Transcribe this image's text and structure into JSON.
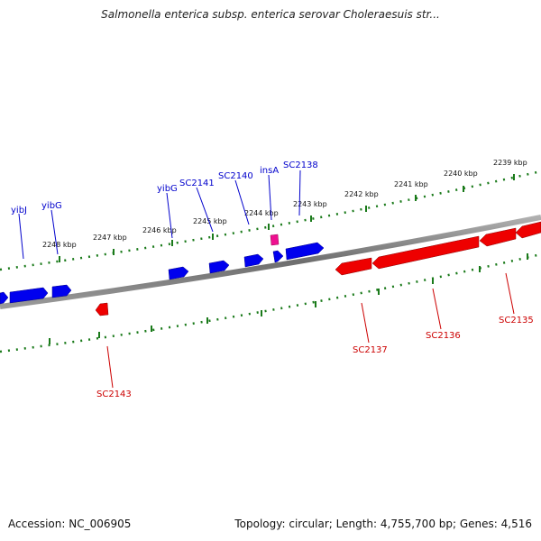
{
  "title": "Salmonella enterica subsp. enterica serovar Choleraesuis str...",
  "footer": {
    "accession": "Accession: NC_006905",
    "summary": "Topology: circular; Length: 4,755,700 bp; Genes: 4,516"
  },
  "colors": {
    "forward_gene": "#0000ee",
    "reverse_gene": "#ee0000",
    "insertion": "#ee1090",
    "backbone": "#808080",
    "ticks": "#1a7a1a",
    "forward_label": "#0000cc",
    "reverse_label": "#cc0000"
  },
  "scale_ticks": [
    "2248 kbp",
    "2247 kbp",
    "2246 kbp",
    "2245 kbp",
    "2244 kbp",
    "2243 kbp",
    "2242 kbp",
    "2241 kbp",
    "2240 kbp",
    "2239 kbp"
  ],
  "forward_labels": [
    "yibJ",
    "yibG",
    "yibG",
    "SC2141",
    "SC2140",
    "insA",
    "SC2138"
  ],
  "reverse_labels": [
    "SC2143",
    "SC2137",
    "SC2136",
    "SC2135"
  ]
}
